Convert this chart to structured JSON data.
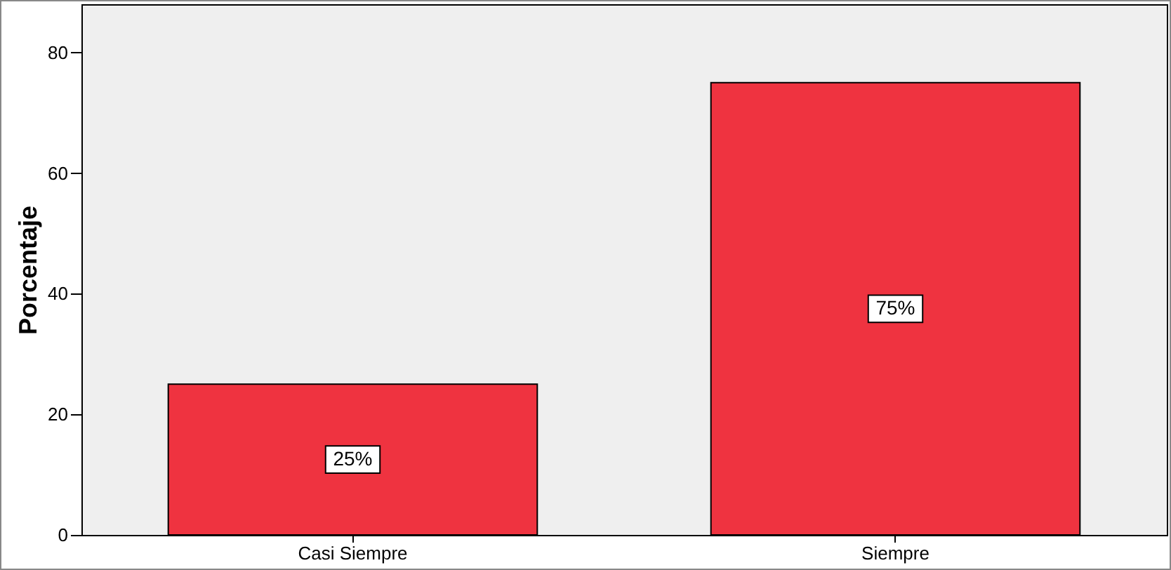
{
  "chart_data": {
    "type": "bar",
    "ylabel": "Porcentaje",
    "categories": [
      "Casi Siempre",
      "Siempre"
    ],
    "values": [
      25,
      75
    ],
    "value_labels": [
      "25%",
      "75%"
    ],
    "color": "#ef3340",
    "ylim": [
      0,
      88
    ],
    "yticks": [
      0,
      20,
      40,
      60,
      80
    ],
    "grid": false
  }
}
